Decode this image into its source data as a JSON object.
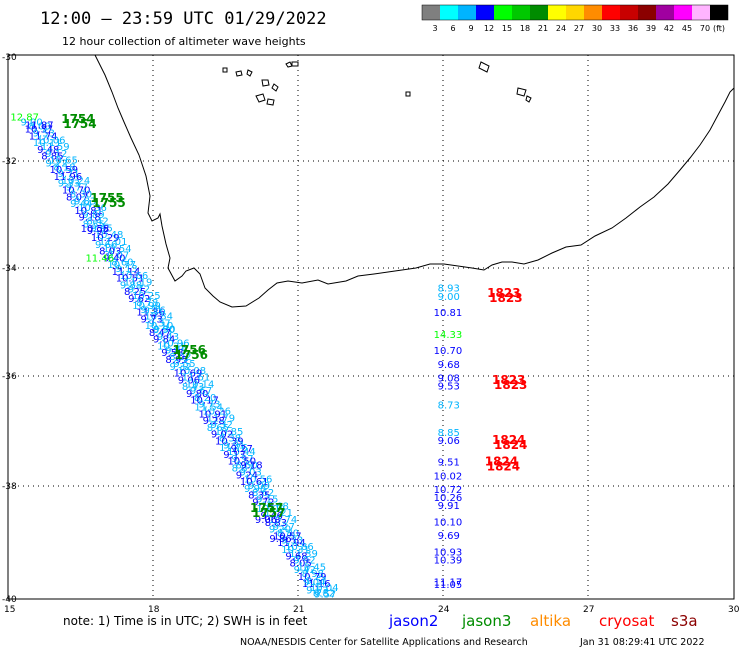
{
  "header": {
    "title": "12:00 – 23:59 UTC 01/29/2022",
    "subtitle": "12 hour collection of altimeter wave heights"
  },
  "legend": {
    "unit": "(ft)",
    "bins": [
      {
        "value": "3",
        "color": "#7f7f7f"
      },
      {
        "value": "6",
        "color": "#00ffff"
      },
      {
        "value": "9",
        "color": "#00b4ff"
      },
      {
        "value": "12",
        "color": "#0000ff"
      },
      {
        "value": "15",
        "color": "#00ff00"
      },
      {
        "value": "18",
        "color": "#00c800"
      },
      {
        "value": "21",
        "color": "#008c00"
      },
      {
        "value": "24",
        "color": "#ffff00"
      },
      {
        "value": "27",
        "color": "#ffd700"
      },
      {
        "value": "30",
        "color": "#ff8c00"
      },
      {
        "value": "33",
        "color": "#ff0000"
      },
      {
        "value": "36",
        "color": "#c80000"
      },
      {
        "value": "39",
        "color": "#8b0000"
      },
      {
        "value": "42",
        "color": "#a000a0"
      },
      {
        "value": "45",
        "color": "#ff00ff"
      },
      {
        "value": "70",
        "color": "#ffb4ff"
      },
      {
        "value": "",
        "color": "#000000"
      }
    ]
  },
  "axes": {
    "lat_labels": [
      "-30",
      "-32",
      "-34",
      "-36",
      "-38",
      "-40"
    ],
    "lon_labels": [
      "15",
      "18",
      "21",
      "24",
      "27",
      "30"
    ],
    "lon_range": [
      15,
      30
    ],
    "lat_range": [
      -30,
      -40
    ]
  },
  "footer": {
    "note": "note:  1) Time is in UTC;  2) SWH is in feet",
    "credit": "NOAA/NESDIS Center for Satellite Applications and Research",
    "timestamp": "Jan 31 08:29:41 UTC 2022",
    "satellites": [
      {
        "name": "jason2",
        "color": "#0000ff"
      },
      {
        "name": "jason3",
        "color": "#008c00"
      },
      {
        "name": "altika",
        "color": "#ff8c00"
      },
      {
        "name": "cryosat",
        "color": "#ff0000"
      },
      {
        "name": "s3a",
        "color": "#8b0000"
      }
    ]
  },
  "tracks": {
    "time_labels": [
      {
        "text": "1754",
        "lon": 16.1,
        "lat": -31.25,
        "color": "#008c00"
      },
      {
        "text": "1755",
        "lon": 16.7,
        "lat": -32.7,
        "color": "#008c00"
      },
      {
        "text": "1756",
        "lon": 18.4,
        "lat": -35.5,
        "color": "#008c00"
      },
      {
        "text": "1757",
        "lon": 20.0,
        "lat": -38.4,
        "color": "#008c00"
      },
      {
        "text": "1823",
        "lon": 24.9,
        "lat": -34.45,
        "color": "#ff0000"
      },
      {
        "text": "1823",
        "lon": 25.0,
        "lat": -36.05,
        "color": "#ff0000"
      },
      {
        "text": "1824",
        "lon": 25.0,
        "lat": -37.15,
        "color": "#ff0000"
      },
      {
        "text": "1824",
        "lon": 24.85,
        "lat": -37.55,
        "color": "#ff0000"
      }
    ],
    "east_values": [
      {
        "text": "8.93",
        "lat": -34.35,
        "color": "#00b4ff"
      },
      {
        "text": "9.00",
        "lat": -34.5,
        "color": "#00b4ff"
      },
      {
        "text": "10.81",
        "lat": -34.8,
        "color": "#0000ff"
      },
      {
        "text": "14.33",
        "lat": -35.2,
        "color": "#00ff00"
      },
      {
        "text": "10.70",
        "lat": -35.5,
        "color": "#0000ff"
      },
      {
        "text": "9.68",
        "lat": -35.75,
        "color": "#0000ff"
      },
      {
        "text": "9.08",
        "lat": -36.0,
        "color": "#0000ff"
      },
      {
        "text": "9.53",
        "lat": -36.15,
        "color": "#0000ff"
      },
      {
        "text": "8.73",
        "lat": -36.5,
        "color": "#00b4ff"
      },
      {
        "text": "8.85",
        "lat": -37.0,
        "color": "#00b4ff"
      },
      {
        "text": "9.06",
        "lat": -37.15,
        "color": "#0000ff"
      },
      {
        "text": "9.51",
        "lat": -37.55,
        "color": "#0000ff"
      },
      {
        "text": "10.02",
        "lat": -37.8,
        "color": "#0000ff"
      },
      {
        "text": "10.72",
        "lat": -38.05,
        "color": "#0000ff"
      },
      {
        "text": "10.26",
        "lat": -38.2,
        "color": "#0000ff"
      },
      {
        "text": "9.91",
        "lat": -38.35,
        "color": "#0000ff"
      },
      {
        "text": "10.10",
        "lat": -38.65,
        "color": "#0000ff"
      },
      {
        "text": "9.69",
        "lat": -38.9,
        "color": "#0000ff"
      },
      {
        "text": "10.93",
        "lat": -39.2,
        "color": "#0000ff"
      },
      {
        "text": "10.39",
        "lat": -39.35,
        "color": "#0000ff"
      },
      {
        "text": "11.17",
        "lat": -39.75,
        "color": "#0000ff"
      },
      {
        "text": "11.05",
        "lat": -39.8,
        "color": "#0000ff"
      }
    ],
    "west_values": [
      {
        "text": "12.87",
        "lon": 15.05,
        "lat": -31.2,
        "color": "#00ff00"
      },
      {
        "text": "11.87",
        "lon": 15.35,
        "lat": -31.35,
        "color": "#0000ff"
      },
      {
        "text": "11.46",
        "lon": 16.6,
        "lat": -33.8,
        "color": "#00ff00"
      },
      {
        "text": "10.58",
        "lon": 16.5,
        "lat": -33.25,
        "color": "#0000ff"
      },
      {
        "text": "9.16",
        "lon": 17.8,
        "lat": -34.75,
        "color": "#00b4ff"
      },
      {
        "text": "9.30",
        "lon": 18.0,
        "lat": -35.1,
        "color": "#00b4ff"
      },
      {
        "text": "9.27",
        "lon": 19.6,
        "lat": -37.3,
        "color": "#0000ff"
      },
      {
        "text": "9.18",
        "lon": 19.8,
        "lat": -37.6,
        "color": "#0000ff"
      },
      {
        "text": "9.06",
        "lon": 20.1,
        "lat": -38.6,
        "color": "#0000ff"
      },
      {
        "text": "9.86",
        "lon": 20.4,
        "lat": -38.95,
        "color": "#0000ff"
      },
      {
        "text": "9.04",
        "lon": 21.1,
        "lat": -39.75,
        "color": "#00b4ff"
      },
      {
        "text": "8.82",
        "lon": 21.3,
        "lat": -39.95,
        "color": "#00b4ff"
      }
    ]
  }
}
